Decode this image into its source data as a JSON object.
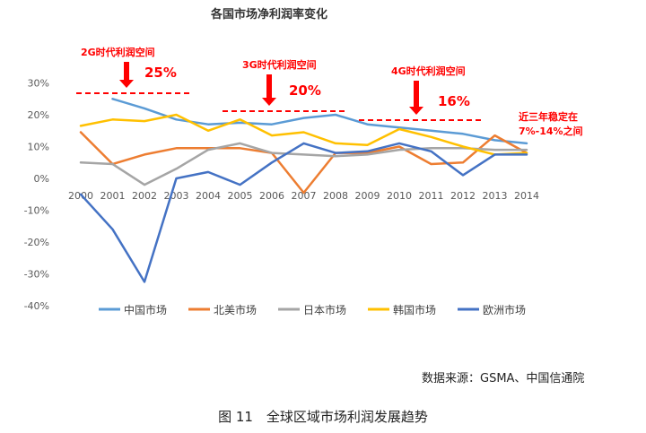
{
  "chart_data": {
    "type": "line",
    "title": "各国市场净利润率变化",
    "x": [
      "2000",
      "2001",
      "2002",
      "2003",
      "2004",
      "2005",
      "2006",
      "2007",
      "2008",
      "2009",
      "2010",
      "2011",
      "2012",
      "2013",
      "2014"
    ],
    "y_ticks": [
      "30%",
      "20%",
      "10%",
      "0%",
      "-10%",
      "-20%",
      "-30%",
      "-40%"
    ],
    "ylim": [
      -40,
      30
    ],
    "series": [
      {
        "name": "中国市场",
        "color": "#5b9bd5",
        "values": [
          null,
          25,
          22,
          18.5,
          17,
          17.5,
          17,
          19,
          20,
          17,
          16,
          15,
          14,
          12,
          11
        ]
      },
      {
        "name": "北美市场",
        "color": "#ed7d31",
        "values": [
          14.5,
          4.5,
          7.5,
          9.5,
          9.5,
          9.5,
          8,
          -4.5,
          8,
          8,
          10,
          4.5,
          5,
          13.5,
          8
        ]
      },
      {
        "name": "日本市场",
        "color": "#a5a5a5",
        "values": [
          5,
          4.5,
          -2,
          3,
          9,
          11,
          8,
          7.5,
          7,
          7.5,
          9,
          9.5,
          9.5,
          9,
          9
        ]
      },
      {
        "name": "韩国市场",
        "color": "#ffc000",
        "values": [
          16.5,
          18.5,
          18,
          20,
          15,
          18.5,
          13.5,
          14.5,
          11,
          10.5,
          15.5,
          13,
          10,
          7.5,
          8
        ]
      },
      {
        "name": "欧洲市场",
        "color": "#4472c4",
        "values": [
          -5,
          -16,
          -32.5,
          0,
          2,
          -2,
          5,
          11,
          8,
          8.5,
          11,
          8.5,
          1,
          7.5,
          7.5
        ]
      }
    ],
    "annotations": [
      {
        "label": "2G时代利润空间",
        "value": "25%"
      },
      {
        "label": "3G时代利润空间",
        "value": "20%"
      },
      {
        "label": "4G时代利润空间",
        "value": "16%"
      }
    ],
    "note_lines": [
      "近三年稳定在",
      "7%-14%之间"
    ],
    "grid": false,
    "legend": "bottom"
  },
  "source": "数据来源：GSMA、中国信通院",
  "caption": "图 11　全球区域市场利润发展趋势"
}
